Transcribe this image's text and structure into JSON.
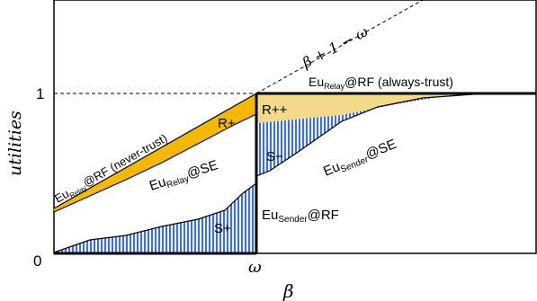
{
  "axes": {
    "ylabel": "utilities",
    "xlabel": "β",
    "y_tick_0": "0",
    "y_tick_1": "1",
    "x_tick_omega": "ω"
  },
  "curve_labels": {
    "trust_line": "β + 1 − ω",
    "relay_rf_always_prefix": "Eu",
    "relay_rf_always_sub": "Relay",
    "relay_rf_always_suffix": "@RF (always-trust)",
    "relay_rf_never_prefix": "Eu",
    "relay_rf_never_sub": "Relay",
    "relay_rf_never_suffix": "@RF (never-trust)",
    "relay_se_prefix": "Eu",
    "relay_se_sub": "Relay",
    "relay_se_suffix": "@SE",
    "sender_se_prefix": "Eu",
    "sender_se_sub": "Sender",
    "sender_se_suffix": "@SE",
    "sender_rf_prefix": "Eu",
    "sender_rf_sub": "Sender",
    "sender_rf_suffix": "@RF"
  },
  "region_labels": {
    "r_plus": "R+",
    "r_plus_plus": "R++",
    "s_minus": "S−",
    "s_plus": "S+"
  },
  "colors": {
    "relay_fill": "#f5b800",
    "relay_fill_light": "#f3d98a",
    "sender_stripe": "#3f6fd8",
    "sender_stripe_bg": "#eef3ff"
  }
}
